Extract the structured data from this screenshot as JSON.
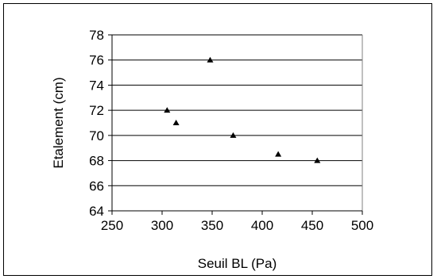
{
  "chart_data": {
    "type": "scatter",
    "title": "",
    "xlabel": "Seuil BL (Pa)",
    "ylabel": "Etalement (cm)",
    "xlim": [
      250,
      500
    ],
    "ylim": [
      64,
      78
    ],
    "x_ticks": [
      250,
      300,
      350,
      400,
      450,
      500
    ],
    "y_ticks": [
      64,
      66,
      68,
      70,
      72,
      74,
      76,
      78
    ],
    "grid": "horizontal",
    "legend": "none",
    "marker": "triangle",
    "marker_color": "#000000",
    "series": [
      {
        "x": [
          305,
          314,
          348,
          371,
          416,
          455
        ],
        "y": [
          72,
          71,
          76,
          70,
          68.5,
          68
        ]
      }
    ]
  }
}
